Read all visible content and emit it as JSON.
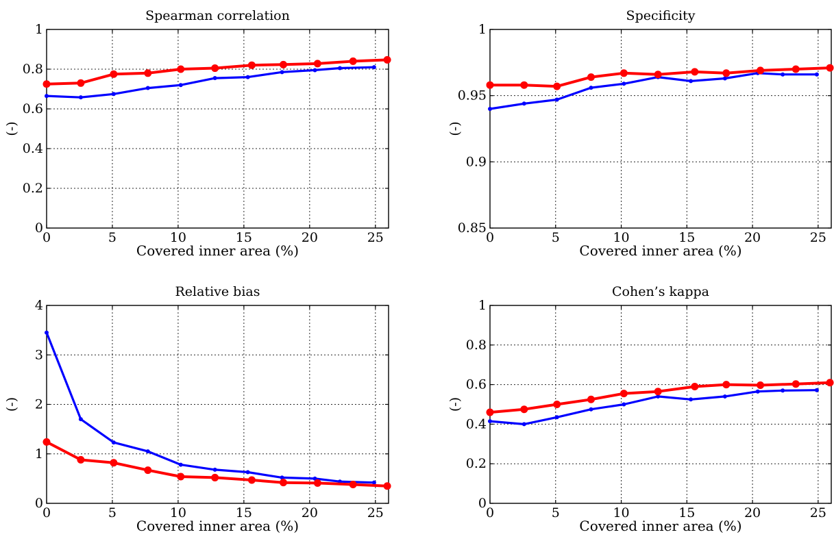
{
  "chart_data": [
    {
      "type": "line",
      "title": "Spearman correlation",
      "xlabel": "Covered inner area (%)",
      "ylabel": "(-)",
      "xlim": [
        0,
        26
      ],
      "ylim": [
        0,
        1
      ],
      "xticks": [
        0,
        5,
        10,
        15,
        20,
        25
      ],
      "yticks": [
        0,
        0.2,
        0.4,
        0.6,
        0.8,
        1
      ],
      "ytick_labels": [
        "0",
        "0.2",
        "0.4",
        "0.6",
        "0.8",
        "1"
      ],
      "grid": true,
      "series": [
        {
          "color": "#0000ff",
          "marker": "small",
          "x": [
            0,
            2.6,
            5.1,
            7.7,
            10.2,
            12.8,
            15.3,
            17.9,
            20.4,
            22.3,
            24.9
          ],
          "y": [
            0.665,
            0.658,
            0.675,
            0.705,
            0.72,
            0.755,
            0.76,
            0.785,
            0.795,
            0.805,
            0.81
          ]
        },
        {
          "color": "#ff0000",
          "marker": "large",
          "x": [
            0,
            2.6,
            5.1,
            7.7,
            10.2,
            12.8,
            15.6,
            18.0,
            20.6,
            23.3,
            25.9
          ],
          "y": [
            0.725,
            0.73,
            0.775,
            0.78,
            0.8,
            0.805,
            0.82,
            0.823,
            0.828,
            0.84,
            0.847
          ]
        }
      ]
    },
    {
      "type": "line",
      "title": "Specificity",
      "xlabel": "Covered inner area (%)",
      "ylabel": "(-)",
      "xlim": [
        0,
        26
      ],
      "ylim": [
        0.85,
        1
      ],
      "xticks": [
        0,
        5,
        10,
        15,
        20,
        25
      ],
      "yticks": [
        0.85,
        0.9,
        0.95,
        1
      ],
      "ytick_labels": [
        "0.85",
        "0.9",
        "0.95",
        "1"
      ],
      "grid": true,
      "series": [
        {
          "color": "#0000ff",
          "marker": "small",
          "x": [
            0,
            2.6,
            5.1,
            7.7,
            10.2,
            12.8,
            15.3,
            17.9,
            20.4,
            22.3,
            24.9
          ],
          "y": [
            0.94,
            0.944,
            0.947,
            0.956,
            0.959,
            0.964,
            0.961,
            0.963,
            0.967,
            0.966,
            0.966
          ]
        },
        {
          "color": "#ff0000",
          "marker": "large",
          "x": [
            0,
            2.6,
            5.1,
            7.7,
            10.2,
            12.8,
            15.6,
            18.0,
            20.6,
            23.3,
            25.9
          ],
          "y": [
            0.958,
            0.958,
            0.957,
            0.964,
            0.967,
            0.966,
            0.968,
            0.967,
            0.969,
            0.97,
            0.971
          ]
        }
      ]
    },
    {
      "type": "line",
      "title": "Relative bias",
      "xlabel": "Covered inner area (%)",
      "ylabel": "(-)",
      "xlim": [
        0,
        26
      ],
      "ylim": [
        0,
        4
      ],
      "xticks": [
        0,
        5,
        10,
        15,
        20,
        25
      ],
      "yticks": [
        0,
        1,
        2,
        3,
        4
      ],
      "ytick_labels": [
        "0",
        "1",
        "2",
        "3",
        "4"
      ],
      "grid": true,
      "series": [
        {
          "color": "#0000ff",
          "marker": "small",
          "x": [
            0,
            2.6,
            5.1,
            7.7,
            10.2,
            12.8,
            15.3,
            17.9,
            20.4,
            22.3,
            24.9
          ],
          "y": [
            3.45,
            1.7,
            1.23,
            1.05,
            0.78,
            0.68,
            0.63,
            0.52,
            0.5,
            0.44,
            0.42
          ]
        },
        {
          "color": "#ff0000",
          "marker": "large",
          "x": [
            0,
            2.6,
            5.1,
            7.7,
            10.2,
            12.8,
            15.6,
            18.0,
            20.6,
            23.3,
            25.9
          ],
          "y": [
            1.24,
            0.88,
            0.82,
            0.67,
            0.54,
            0.52,
            0.47,
            0.42,
            0.41,
            0.38,
            0.35
          ]
        }
      ]
    },
    {
      "type": "line",
      "title": "Cohen’s kappa",
      "xlabel": "Covered inner area (%)",
      "ylabel": "(-)",
      "xlim": [
        0,
        26
      ],
      "ylim": [
        0,
        1
      ],
      "xticks": [
        0,
        5,
        10,
        15,
        20,
        25
      ],
      "yticks": [
        0,
        0.2,
        0.4,
        0.6,
        0.8,
        1
      ],
      "ytick_labels": [
        "0",
        "0.2",
        "0.4",
        "0.6",
        "0.8",
        "1"
      ],
      "grid": true,
      "series": [
        {
          "color": "#0000ff",
          "marker": "small",
          "x": [
            0,
            2.6,
            5.1,
            7.7,
            10.2,
            12.8,
            15.3,
            17.9,
            20.4,
            22.3,
            24.9
          ],
          "y": [
            0.415,
            0.4,
            0.435,
            0.475,
            0.5,
            0.54,
            0.525,
            0.54,
            0.565,
            0.57,
            0.572
          ]
        },
        {
          "color": "#ff0000",
          "marker": "large",
          "x": [
            0,
            2.6,
            5.1,
            7.7,
            10.2,
            12.8,
            15.6,
            18.0,
            20.6,
            23.3,
            25.9
          ],
          "y": [
            0.46,
            0.475,
            0.5,
            0.525,
            0.555,
            0.565,
            0.59,
            0.6,
            0.597,
            0.603,
            0.61
          ]
        }
      ]
    }
  ]
}
